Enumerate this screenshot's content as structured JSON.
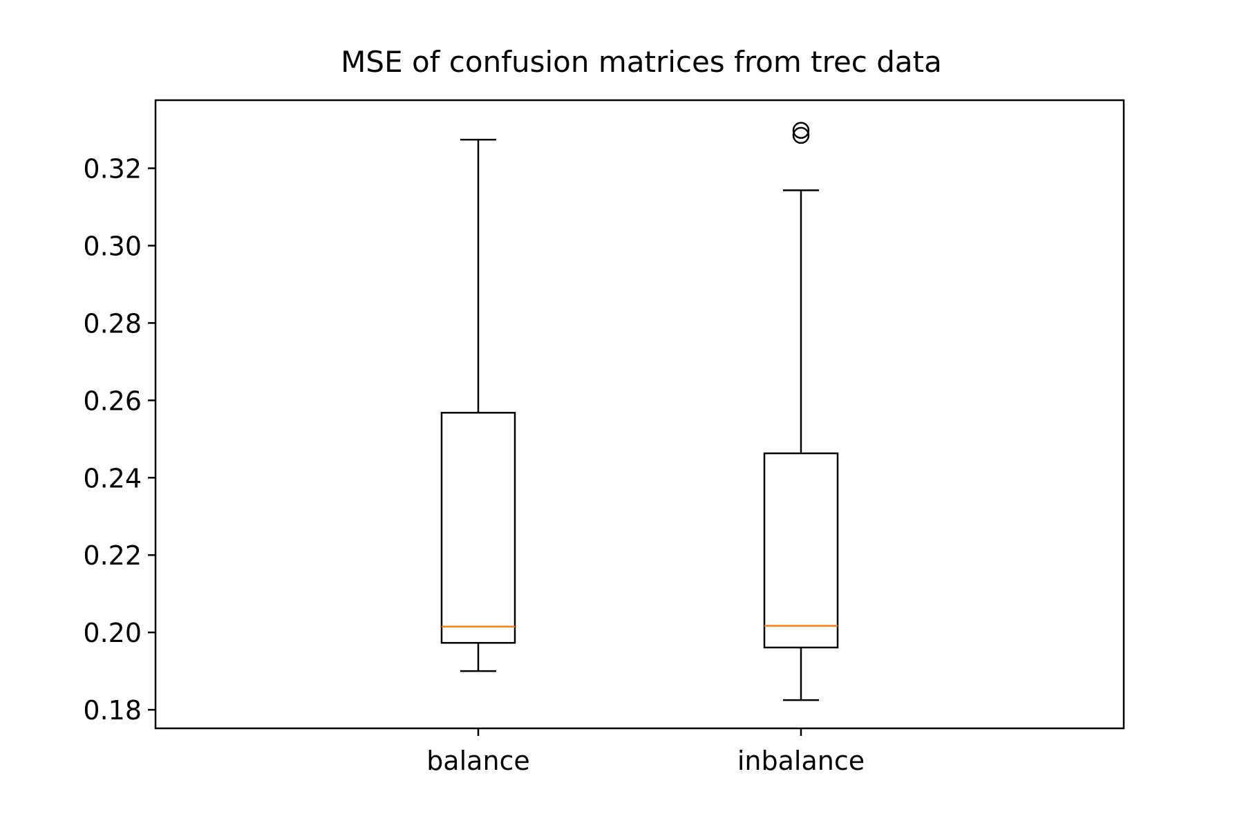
{
  "chart_data": {
    "type": "box",
    "title": "MSE of confusion matrices from trec data",
    "xlabel": "",
    "ylabel": "",
    "categories": [
      "balance",
      "inbalance"
    ],
    "ylim": [
      0.1752,
      0.3376
    ],
    "yticks": [
      0.18,
      0.2,
      0.22,
      0.24,
      0.26,
      0.28,
      0.3,
      0.32
    ],
    "ytick_labels": [
      "0.18",
      "0.20",
      "0.22",
      "0.24",
      "0.26",
      "0.28",
      "0.30",
      "0.32"
    ],
    "grid": false,
    "boxes": [
      {
        "category": "balance",
        "whisker_low": 0.19,
        "q1": 0.1973,
        "median": 0.2015,
        "q3": 0.2568,
        "whisker_high": 0.3274,
        "outliers": []
      },
      {
        "category": "inbalance",
        "whisker_low": 0.1825,
        "q1": 0.1961,
        "median": 0.2017,
        "q3": 0.2463,
        "whisker_high": 0.3143,
        "outliers": [
          0.3285,
          0.3298
        ]
      }
    ],
    "colors": {
      "box": "#000000",
      "median": "#ff7f0e"
    }
  }
}
